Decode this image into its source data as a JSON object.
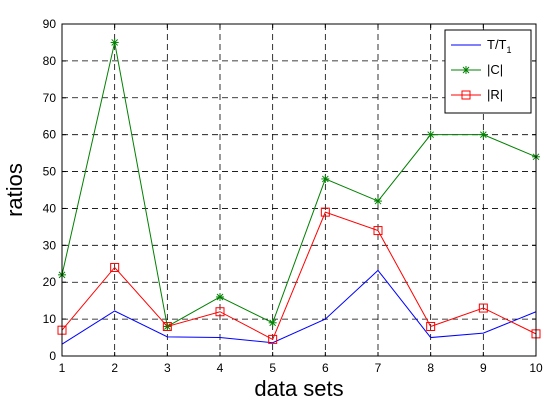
{
  "chart_data": {
    "type": "line",
    "xlabel": "data sets",
    "ylabel": "ratios",
    "xlim": [
      1,
      10
    ],
    "ylim": [
      0,
      90
    ],
    "x": [
      1,
      2,
      3,
      4,
      5,
      6,
      7,
      8,
      9,
      10
    ],
    "xticks": [
      "1",
      "2",
      "3",
      "4",
      "5",
      "6",
      "7",
      "8",
      "9",
      "10"
    ],
    "yticks": [
      "0",
      "10",
      "20",
      "30",
      "40",
      "50",
      "60",
      "70",
      "80",
      "90"
    ],
    "grid": true,
    "legend_position": "top-right",
    "series": [
      {
        "name": "T/T1",
        "legend_main": "T/T",
        "legend_sub": "1",
        "color": "#0000ff",
        "marker": "none",
        "values": [
          3.2,
          12.2,
          5.2,
          5.0,
          3.6,
          10.0,
          23.2,
          5.0,
          6.2,
          12.0
        ]
      },
      {
        "name": "|C|",
        "legend_main": "|C|",
        "legend_sub": "",
        "color": "#008000",
        "marker": "star",
        "values": [
          22,
          85,
          8,
          16,
          9,
          48,
          42,
          60,
          60,
          54
        ]
      },
      {
        "name": "|R|",
        "legend_main": "|R|",
        "legend_sub": "",
        "color": "#ff0000",
        "marker": "square",
        "values": [
          7,
          24,
          8,
          12,
          4.5,
          39,
          34,
          8,
          13,
          6
        ]
      }
    ]
  }
}
